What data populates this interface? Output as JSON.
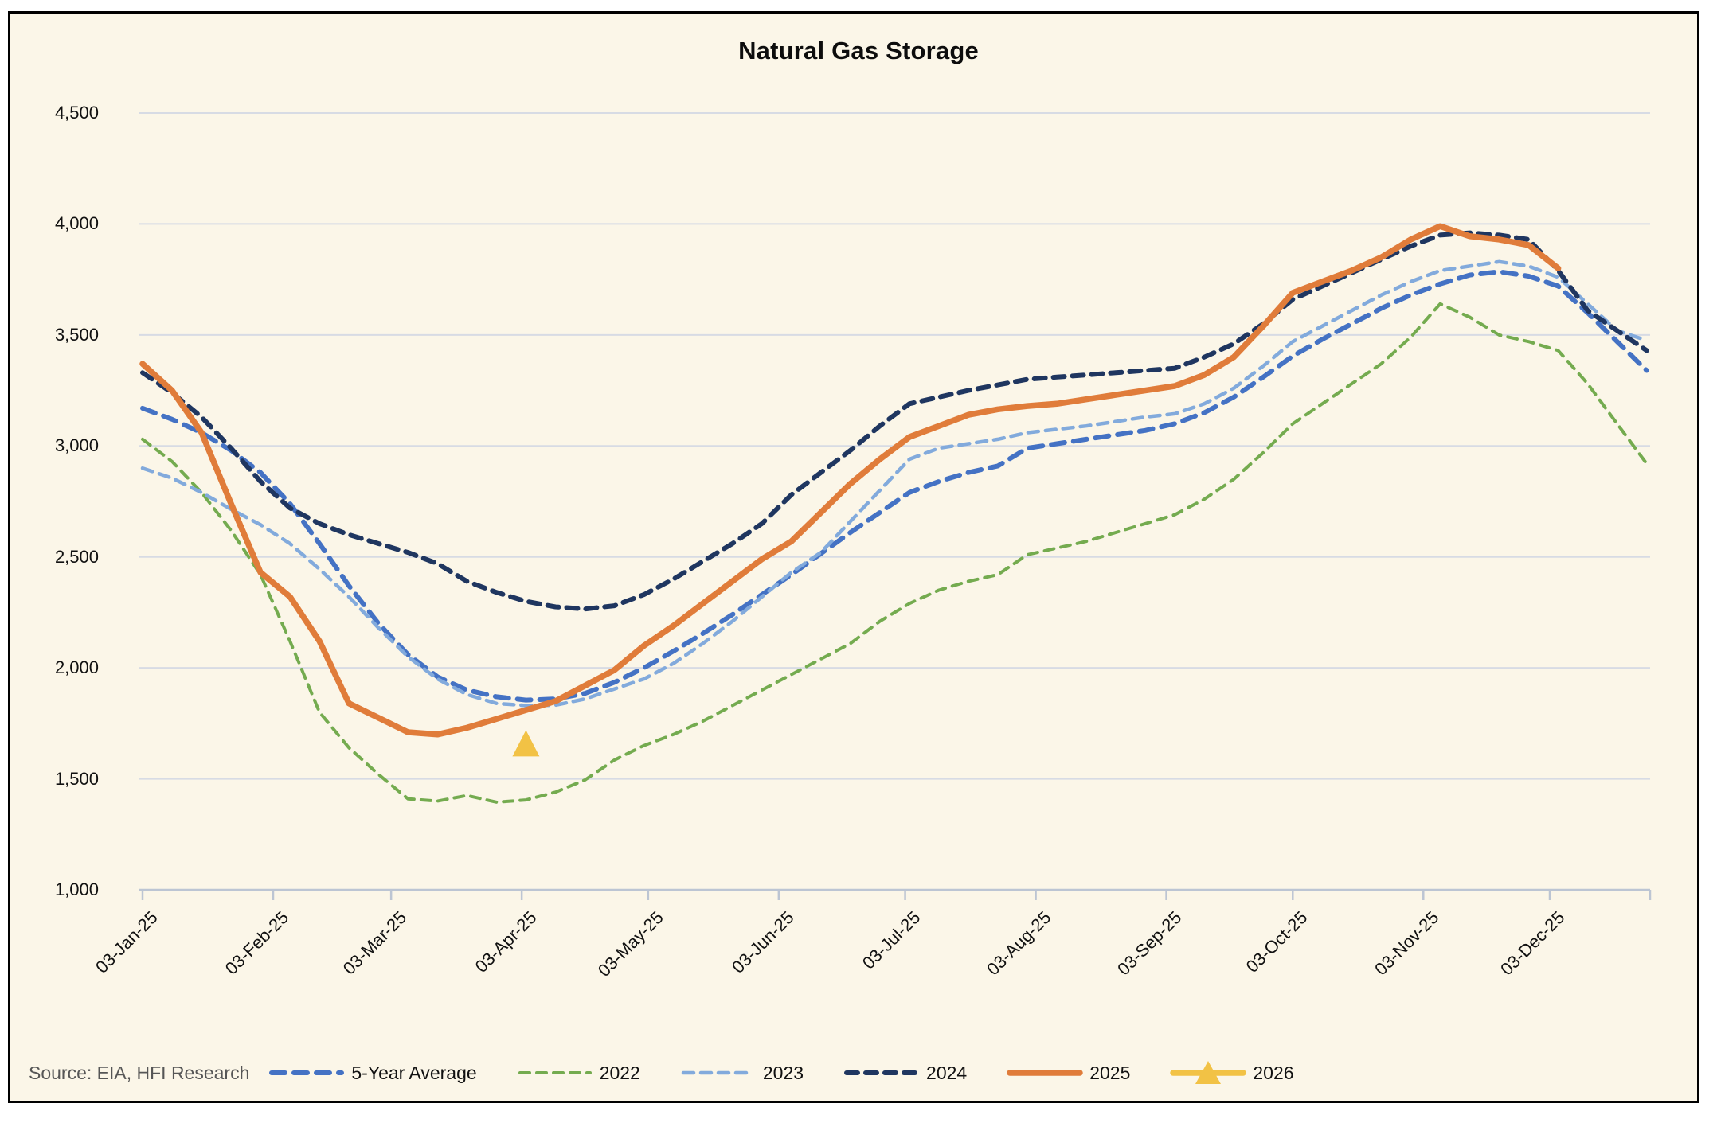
{
  "title": "Natural Gas Storage",
  "source": "Source: EIA, HFI Research",
  "colors": {
    "background": "#fbf6e8",
    "frame_border": "#000000",
    "gridline": "#d7dbe4",
    "axis_line": "#bcc5d3",
    "title_text": "#0d0d0d",
    "source_text": "#565656"
  },
  "chart_data": {
    "type": "line",
    "title": "Natural Gas Storage",
    "xlabel": "",
    "ylabel": "",
    "ylim": [
      1000,
      4500
    ],
    "y_tick_step": 500,
    "y_tick_labels": [
      "4,500",
      "4,000",
      "3,500",
      "3,000",
      "2,500",
      "2,000",
      "1,500",
      "1,000"
    ],
    "x_tick_labels": [
      "03-Jan-25",
      "03-Feb-25",
      "03-Mar-25",
      "03-Apr-25",
      "03-May-25",
      "03-Jun-25",
      "03-Jul-25",
      "03-Aug-25",
      "03-Sep-25",
      "03-Oct-25",
      "03-Nov-25",
      "03-Dec-25"
    ],
    "x_tick_day_offsets": [
      0,
      31,
      59,
      90,
      120,
      151,
      181,
      212,
      243,
      273,
      304,
      334
    ],
    "x_unit": "week",
    "start_label": "03-Jan-25",
    "grid": "horizontal",
    "legend_position": "bottom",
    "series": [
      {
        "name": "5-Year Average",
        "color": "#4472c4",
        "line": "dashed",
        "width": 6,
        "dash": "17 11",
        "values": [
          3170,
          3120,
          3060,
          2980,
          2880,
          2740,
          2560,
          2370,
          2200,
          2060,
          1960,
          1900,
          1870,
          1855,
          1860,
          1885,
          1935,
          2000,
          2075,
          2155,
          2240,
          2330,
          2420,
          2515,
          2610,
          2700,
          2790,
          2840,
          2880,
          2910,
          2990,
          3010,
          3030,
          3050,
          3070,
          3100,
          3150,
          3220,
          3310,
          3405,
          3480,
          3550,
          3620,
          3680,
          3730,
          3770,
          3785,
          3765,
          3720,
          3600,
          3470,
          3340
        ]
      },
      {
        "name": "2022",
        "color": "#74ab4f",
        "line": "dashed",
        "width": 4,
        "dash": "12 9",
        "values": [
          3030,
          2930,
          2790,
          2620,
          2420,
          2120,
          1800,
          1640,
          1520,
          1410,
          1400,
          1425,
          1395,
          1405,
          1440,
          1495,
          1585,
          1650,
          1700,
          1760,
          1830,
          1900,
          1970,
          2040,
          2110,
          2210,
          2290,
          2350,
          2390,
          2420,
          2510,
          2540,
          2570,
          2610,
          2650,
          2690,
          2760,
          2850,
          2970,
          3100,
          3190,
          3280,
          3370,
          3490,
          3640,
          3580,
          3500,
          3470,
          3430,
          3280,
          3100,
          2920
        ]
      },
      {
        "name": "2023",
        "color": "#82aadc",
        "line": "dashed",
        "width": 4.5,
        "dash": "13 9",
        "values": [
          2900,
          2855,
          2790,
          2715,
          2645,
          2560,
          2445,
          2320,
          2180,
          2050,
          1950,
          1880,
          1840,
          1830,
          1832,
          1860,
          1905,
          1950,
          2020,
          2110,
          2210,
          2320,
          2430,
          2520,
          2660,
          2800,
          2940,
          2990,
          3010,
          3030,
          3060,
          3075,
          3090,
          3110,
          3130,
          3145,
          3190,
          3260,
          3360,
          3470,
          3540,
          3610,
          3680,
          3740,
          3790,
          3810,
          3830,
          3810,
          3760,
          3640,
          3520,
          3475
        ]
      },
      {
        "name": "2024",
        "color": "#1f3660",
        "line": "dashed",
        "width": 6,
        "dash": "14 10",
        "values": [
          3330,
          3240,
          3130,
          2990,
          2840,
          2720,
          2650,
          2600,
          2560,
          2520,
          2470,
          2390,
          2340,
          2300,
          2275,
          2265,
          2280,
          2330,
          2400,
          2480,
          2560,
          2650,
          2780,
          2880,
          2980,
          3090,
          3190,
          3220,
          3250,
          3275,
          3300,
          3310,
          3320,
          3330,
          3340,
          3350,
          3400,
          3460,
          3550,
          3660,
          3720,
          3780,
          3840,
          3900,
          3950,
          3960,
          3950,
          3930,
          3790,
          3610,
          3520,
          3430
        ]
      },
      {
        "name": "2025",
        "color": "#e07c3a",
        "line": "solid",
        "width": 7.5,
        "dash": null,
        "values": [
          3370,
          3250,
          3060,
          2740,
          2430,
          2320,
          2120,
          1840,
          1775,
          1710,
          1700,
          1730,
          1770,
          1810,
          1850,
          1920,
          1990,
          2100,
          2190,
          2290,
          2390,
          2490,
          2570,
          2700,
          2830,
          2940,
          3040,
          3090,
          3140,
          3165,
          3180,
          3190,
          3210,
          3230,
          3250,
          3270,
          3320,
          3400,
          3540,
          3690,
          3740,
          3790,
          3850,
          3930,
          3990,
          3945,
          3930,
          3905,
          3800
        ]
      },
      {
        "name": "2026",
        "color": "#f2c245",
        "line": "marker",
        "marker": "triangle",
        "width": 7.5,
        "point": {
          "week": 13,
          "value": 1655
        }
      }
    ]
  },
  "layout_note": ""
}
